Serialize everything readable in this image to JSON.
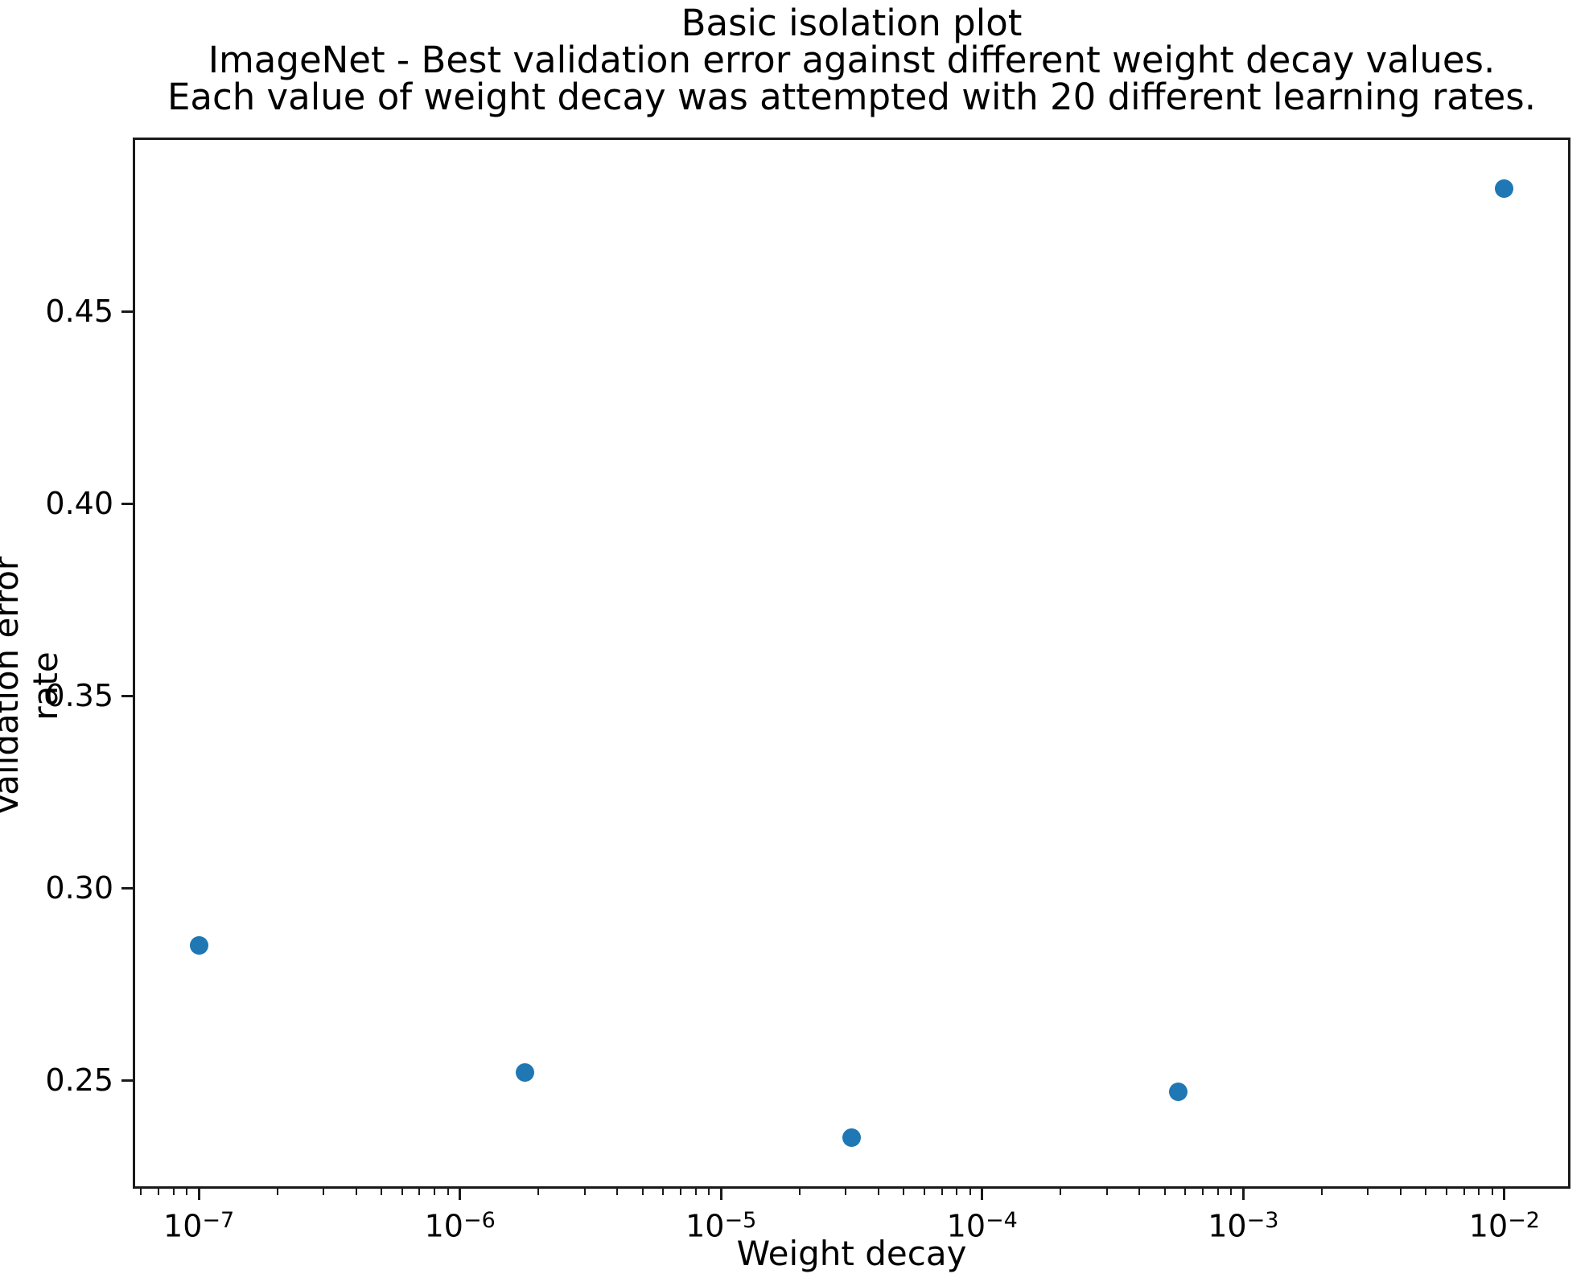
{
  "figure": {
    "background": "#ffffff",
    "spine_color": "#1a1a1a"
  },
  "chart_data": {
    "type": "scatter",
    "title": "Basic isolation plot\nImageNet - Best validation error against different weight decay values.\nEach value of weight decay was attempted with 20 different learning rates.",
    "title_lines": [
      "Basic isolation plot",
      "ImageNet - Best validation error against different weight decay values.",
      "Each value of weight decay was attempted with 20 different learning rates."
    ],
    "xlabel": "Weight decay",
    "ylabel": "Validation error rate",
    "x_scale": "log",
    "y_scale": "linear",
    "xlim_log10": [
      -7.25,
      -1.75
    ],
    "ylim": [
      0.222,
      0.495
    ],
    "grid": false,
    "legend": null,
    "marker_color": "#1f77b4",
    "x_major_ticks_log10": [
      -7,
      -6,
      -5,
      -4,
      -3,
      -2
    ],
    "x_tick_labels": [
      {
        "base": "10",
        "exp": "−7"
      },
      {
        "base": "10",
        "exp": "−6"
      },
      {
        "base": "10",
        "exp": "−5"
      },
      {
        "base": "10",
        "exp": "−4"
      },
      {
        "base": "10",
        "exp": "−3"
      },
      {
        "base": "10",
        "exp": "−2"
      }
    ],
    "y_ticks": [
      0.25,
      0.3,
      0.35,
      0.4,
      0.45
    ],
    "y_tick_labels": [
      "0.25",
      "0.30",
      "0.35",
      "0.40",
      "0.45"
    ],
    "points": [
      {
        "x": 1e-07,
        "y": 0.285
      },
      {
        "x": 1.78e-06,
        "y": 0.252
      },
      {
        "x": 3.16e-05,
        "y": 0.235
      },
      {
        "x": 0.000562,
        "y": 0.247
      },
      {
        "x": 0.01,
        "y": 0.482
      }
    ]
  }
}
